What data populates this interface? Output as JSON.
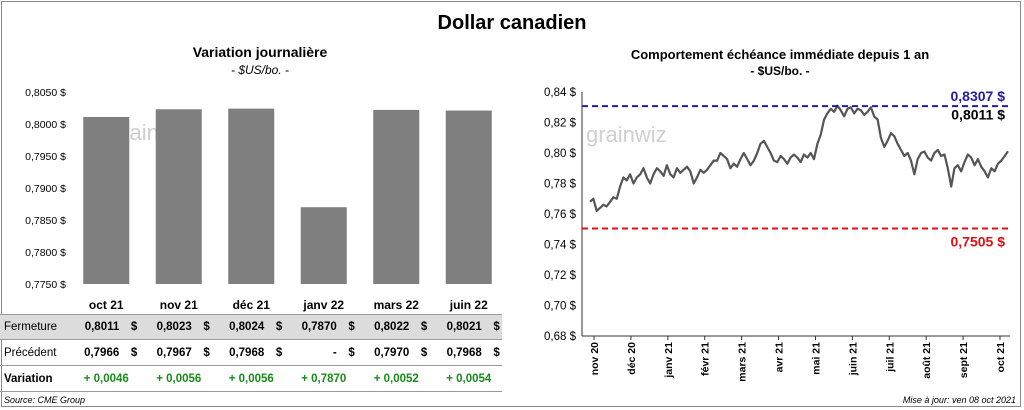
{
  "main_title": "Dollar canadien",
  "left": {
    "title": "Variation  journalière",
    "subtitle": "- $US/bo. -"
  },
  "right": {
    "title": "Comportement échéance immédiate depuis 1 an",
    "subtitle": "- $US/bo. -",
    "max_label": "0,8307 $",
    "last_label": "0,8011 $",
    "min_label": "0,7505 $"
  },
  "watermark": "grainwiz",
  "table": {
    "row_labels": [
      "Fermeture",
      "Précédent",
      "Variation"
    ],
    "close": [
      "0,8011",
      "0,8023",
      "0,8024",
      "0,7870",
      "0,8022",
      "0,8021"
    ],
    "previous": [
      "0,7966",
      "0,7967",
      "0,7968",
      "-",
      "0,7970",
      "0,7968"
    ],
    "variation": [
      "+ 0,0046",
      "+ 0,0056",
      "+ 0,0056",
      "+ 0,7870",
      "+ 0,0052",
      "+ 0,0054"
    ],
    "currency": "$"
  },
  "footer": {
    "source": "Source: CME Group",
    "update": "Mise à jour: ven 08 oct 2021"
  },
  "colors": {
    "bar": "#7f7f7f",
    "line": "#555555",
    "max_line": "#1f1f9f",
    "min_line": "#e01010",
    "positive": "#1a8a1a"
  },
  "chart_data": [
    {
      "type": "bar",
      "categories": [
        "oct 21",
        "nov 21",
        "déc 21",
        "janv 22",
        "mars 22",
        "juin 22"
      ],
      "values": [
        0.8011,
        0.8023,
        0.8024,
        0.787,
        0.8022,
        0.8021
      ],
      "yticks": [
        "0,7750 $",
        "0,7800 $",
        "0,7850 $",
        "0,7900 $",
        "0,7950 $",
        "0,8000 $",
        "0,8050 $"
      ],
      "ylim": [
        0.775,
        0.805
      ]
    },
    {
      "type": "line",
      "x_labels": [
        "nov 20",
        "déc 20",
        "janv 21",
        "févr 21",
        "mars 21",
        "avr 21",
        "mai 21",
        "juin 21",
        "juil 21",
        "août 21",
        "sept 21",
        "oct 21"
      ],
      "yticks": [
        "0,68 $",
        "0,70 $",
        "0,72 $",
        "0,74 $",
        "0,76 $",
        "0,78 $",
        "0,80 $",
        "0,82 $",
        "0,84 $"
      ],
      "ylim": [
        0.68,
        0.84
      ],
      "reference_lines": [
        0.8307,
        0.7505
      ],
      "values": [
        0.768,
        0.77,
        0.762,
        0.764,
        0.766,
        0.765,
        0.768,
        0.771,
        0.77,
        0.778,
        0.784,
        0.782,
        0.786,
        0.78,
        0.784,
        0.786,
        0.79,
        0.784,
        0.78,
        0.786,
        0.79,
        0.788,
        0.785,
        0.792,
        0.786,
        0.784,
        0.79,
        0.787,
        0.789,
        0.791,
        0.788,
        0.78,
        0.784,
        0.789,
        0.787,
        0.789,
        0.792,
        0.795,
        0.795,
        0.8,
        0.798,
        0.796,
        0.79,
        0.793,
        0.791,
        0.796,
        0.8,
        0.796,
        0.792,
        0.795,
        0.8,
        0.806,
        0.808,
        0.804,
        0.8,
        0.795,
        0.794,
        0.798,
        0.796,
        0.793,
        0.797,
        0.799,
        0.797,
        0.794,
        0.799,
        0.797,
        0.8,
        0.796,
        0.806,
        0.812,
        0.822,
        0.826,
        0.829,
        0.827,
        0.831,
        0.828,
        0.824,
        0.829,
        0.83,
        0.826,
        0.829,
        0.828,
        0.825,
        0.827,
        0.83,
        0.824,
        0.822,
        0.81,
        0.804,
        0.808,
        0.813,
        0.811,
        0.806,
        0.802,
        0.798,
        0.8,
        0.795,
        0.786,
        0.796,
        0.8,
        0.801,
        0.797,
        0.795,
        0.8,
        0.802,
        0.798,
        0.799,
        0.79,
        0.778,
        0.79,
        0.792,
        0.788,
        0.794,
        0.799,
        0.797,
        0.792,
        0.796,
        0.791,
        0.788,
        0.784,
        0.79,
        0.788,
        0.793,
        0.795,
        0.798,
        0.8011
      ]
    }
  ]
}
